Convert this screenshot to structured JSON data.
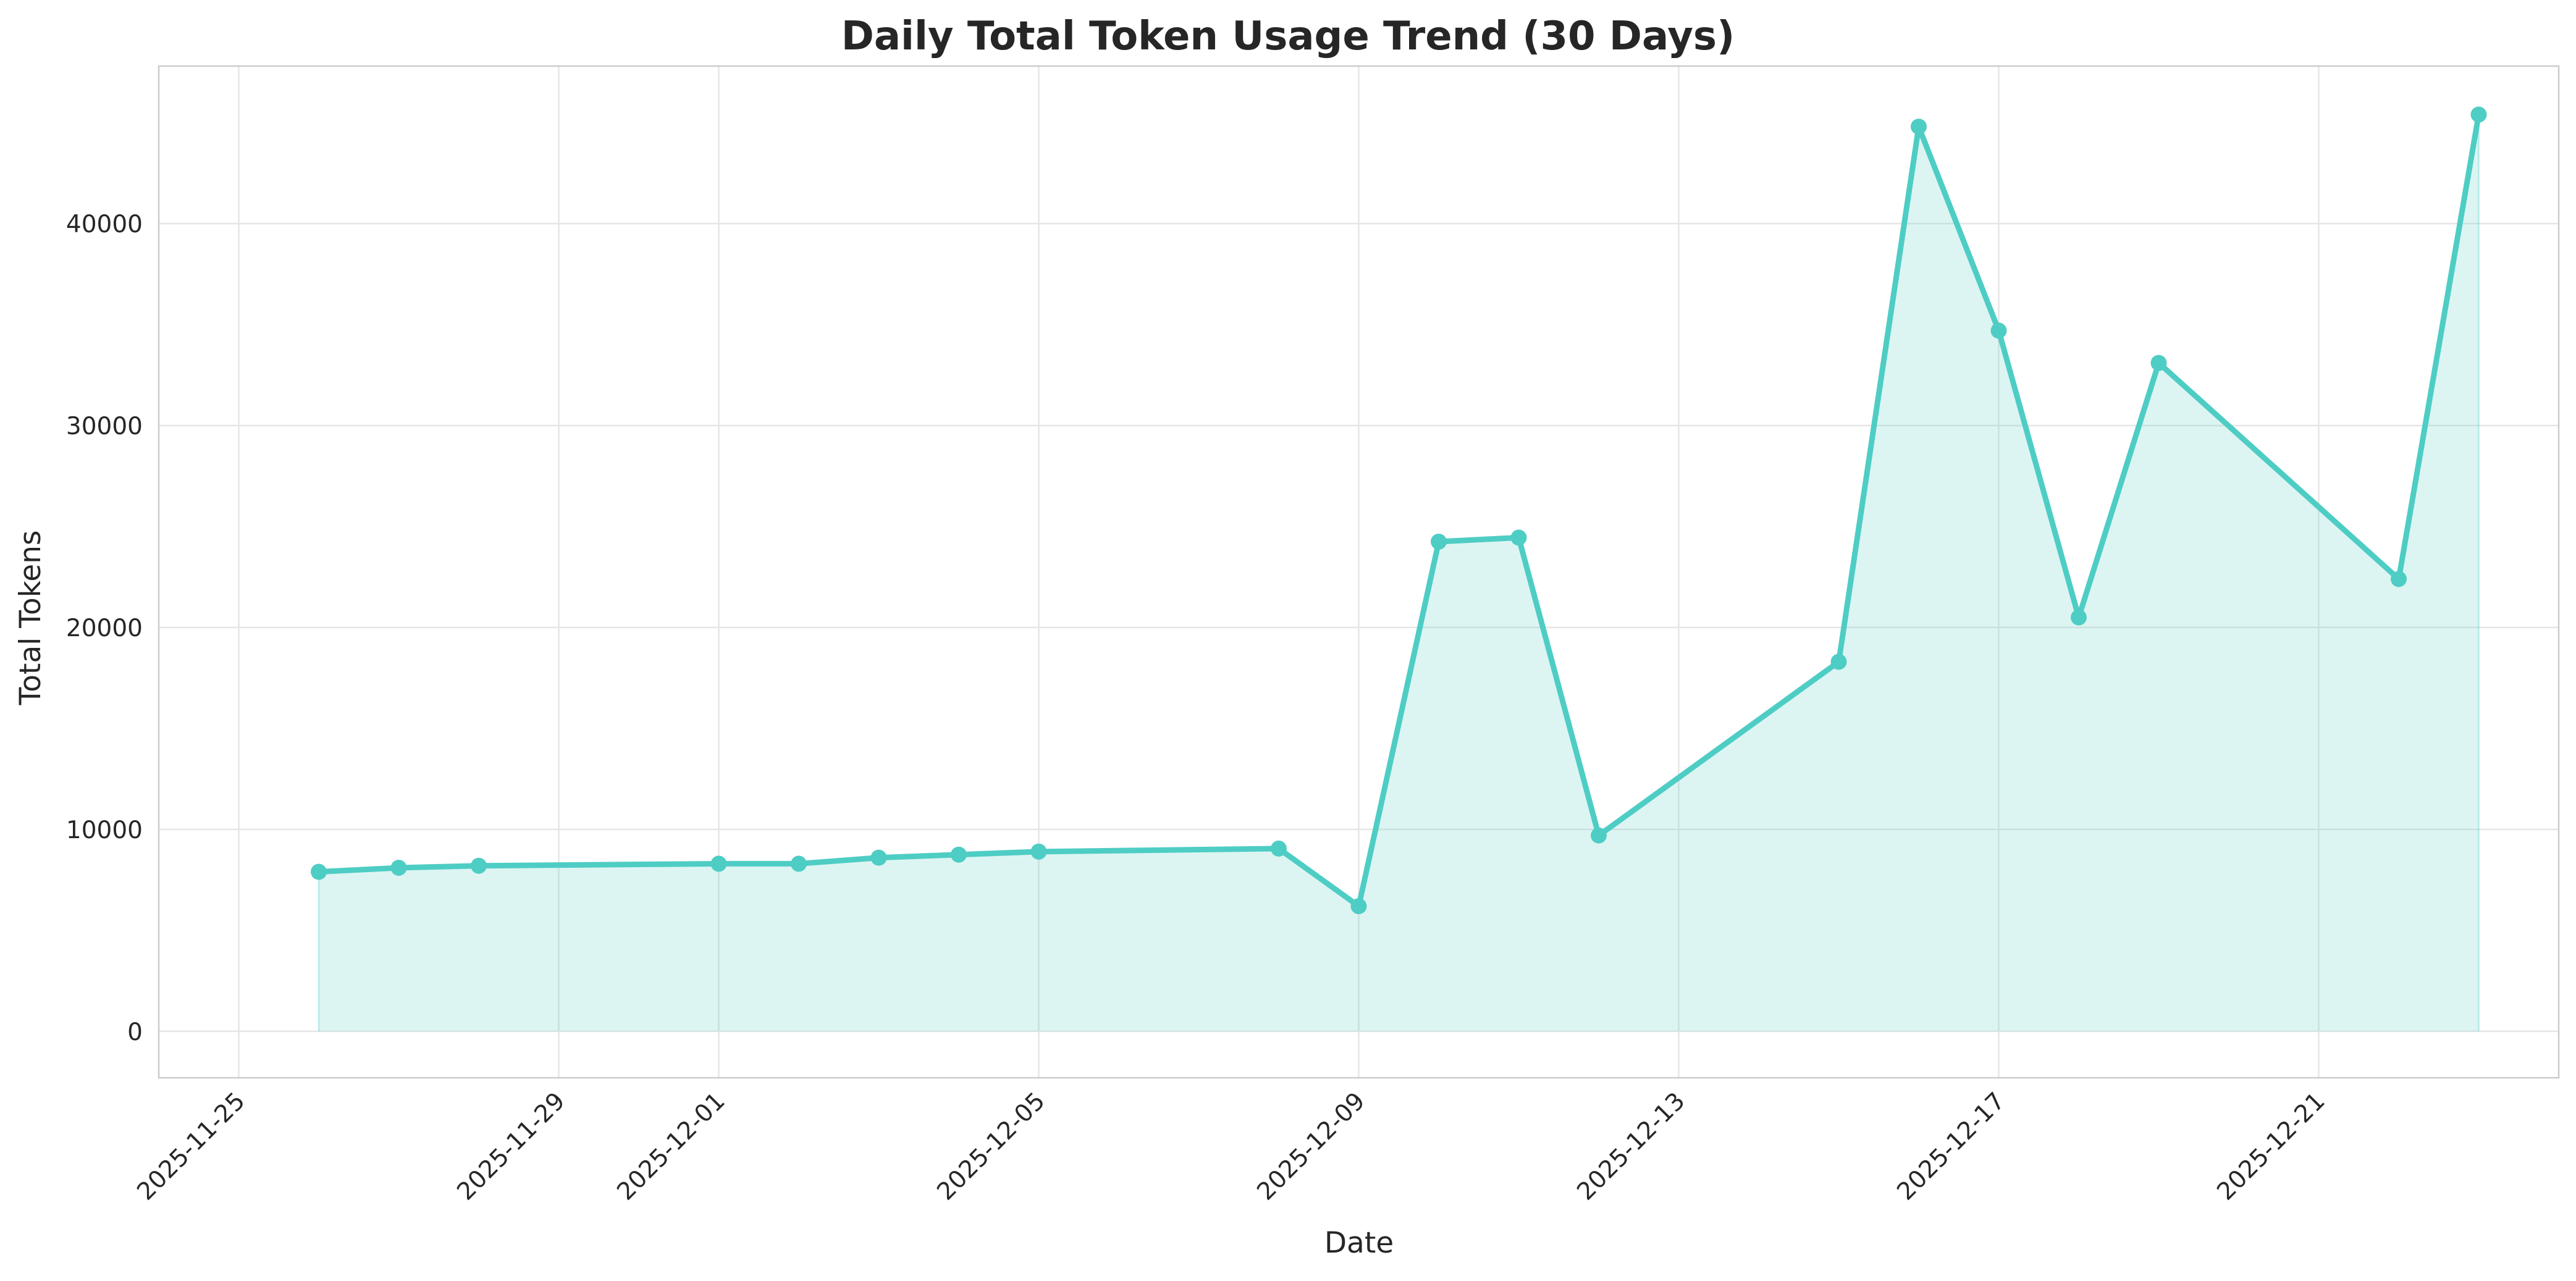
{
  "chart_data": {
    "type": "line",
    "title": "Daily Total Token Usage Trend (30 Days)",
    "xlabel": "Date",
    "ylabel": "Total Tokens",
    "grid": true,
    "legend": false,
    "colors": {
      "line": "#4ECDC4",
      "fill": "#4ECDC4",
      "axes_frame": "#cccccc",
      "grid": "#e6e6e6",
      "text": "#262626"
    },
    "xlim": [
      "2025-11-24",
      "2025-12-24"
    ],
    "ylim": [
      -2300,
      47800
    ],
    "x_ticks": [
      "2025-11-25",
      "2025-11-29",
      "2025-12-01",
      "2025-12-05",
      "2025-12-09",
      "2025-12-13",
      "2025-12-17",
      "2025-12-21"
    ],
    "y_ticks": [
      0,
      10000,
      20000,
      30000,
      40000
    ],
    "series": [
      {
        "x": [
          "2025-11-26",
          "2025-11-27",
          "2025-11-28",
          "2025-12-01",
          "2025-12-02",
          "2025-12-03",
          "2025-12-04",
          "2025-12-05",
          "2025-12-08",
          "2025-12-09",
          "2025-12-10",
          "2025-12-11",
          "2025-12-12",
          "2025-12-15",
          "2025-12-16",
          "2025-12-17",
          "2025-12-18",
          "2025-12-19",
          "2025-12-22",
          "2025-12-23"
        ],
        "values": [
          7900,
          8100,
          8200,
          8300,
          8300,
          8600,
          8750,
          8900,
          9050,
          6200,
          24250,
          24450,
          9700,
          18300,
          44800,
          34700,
          20500,
          33100,
          22400,
          45400
        ]
      }
    ]
  }
}
